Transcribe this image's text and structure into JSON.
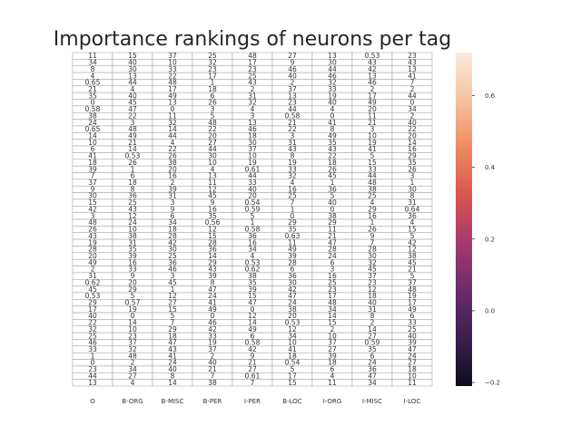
{
  "chart_data": {
    "type": "heatmap",
    "title": "Importance rankings of neurons per tag",
    "xlabel": "",
    "ylabel": "",
    "columns": [
      "O",
      "B-ORG",
      "B-MISC",
      "B-PER",
      "I-PER",
      "B-LOC",
      "I-ORG",
      "I-MISC",
      "I-LOC"
    ],
    "cell_labels": [
      [
        "11",
        "15",
        "37",
        "25",
        "48",
        "27",
        "13",
        "0.53",
        "23"
      ],
      [
        "34",
        "40",
        "10",
        "32",
        "17",
        "9",
        "30",
        "43",
        "43"
      ],
      [
        "8",
        "30",
        "33",
        "23",
        "23",
        "46",
        "44",
        "42",
        "13"
      ],
      [
        "4",
        "13",
        "22",
        "17",
        "25",
        "40",
        "46",
        "13",
        "41"
      ],
      [
        "0.65",
        "44",
        "48",
        "1",
        "43",
        "2",
        "32",
        "46",
        "7"
      ],
      [
        "21",
        "4",
        "17",
        "18",
        "2",
        "37",
        "33",
        "2",
        "2"
      ],
      [
        "35",
        "40",
        "49",
        "6",
        "31",
        "13",
        "19",
        "17",
        "44"
      ],
      [
        "0",
        "45",
        "13",
        "26",
        "32",
        "23",
        "40",
        "49",
        "0"
      ],
      [
        "0.58",
        "47",
        "0",
        "3",
        "4",
        "44",
        "4",
        "20",
        "34"
      ],
      [
        "38",
        "22",
        "11",
        "5",
        "3",
        "0.58",
        "0",
        "11",
        "2"
      ],
      [
        "24",
        "3",
        "32",
        "48",
        "13",
        "21",
        "41",
        "21",
        "40"
      ],
      [
        "0.65",
        "48",
        "14",
        "22",
        "46",
        "22",
        "8",
        "3",
        "22"
      ],
      [
        "14",
        "49",
        "44",
        "20",
        "18",
        "3",
        "49",
        "10",
        "20"
      ],
      [
        "10",
        "21",
        "4",
        "27",
        "30",
        "31",
        "35",
        "19",
        "14"
      ],
      [
        "6",
        "14",
        "22",
        "44",
        "37",
        "43",
        "43",
        "41",
        "16"
      ],
      [
        "41",
        "0.53",
        "26",
        "30",
        "10",
        "8",
        "22",
        "5",
        "29"
      ],
      [
        "18",
        "26",
        "38",
        "10",
        "19",
        "19",
        "18",
        "15",
        "35"
      ],
      [
        "39",
        "1",
        "20",
        "4",
        "0.61",
        "33",
        "26",
        "33",
        "26"
      ],
      [
        "7",
        "6",
        "16",
        "13",
        "44",
        "32",
        "45",
        "44",
        "3"
      ],
      [
        "37",
        "18",
        "2",
        "11",
        "33",
        "4",
        "1",
        "48",
        "1"
      ],
      [
        "9",
        "8",
        "39",
        "12",
        "40",
        "16",
        "36",
        "38",
        "30"
      ],
      [
        "30",
        "36",
        "31",
        "45",
        "20",
        "25",
        "5",
        "25",
        "8"
      ],
      [
        "15",
        "25",
        "3",
        "9",
        "0.54",
        "7",
        "40",
        "4",
        "31"
      ],
      [
        "42",
        "43",
        "9",
        "16",
        "0.59",
        "1",
        "0",
        "29",
        "0.64"
      ],
      [
        "3",
        "12",
        "6",
        "35",
        "5",
        "0",
        "38",
        "16",
        "36"
      ],
      [
        "48",
        "24",
        "34",
        "0.56",
        "1",
        "29",
        "29",
        "1",
        "4"
      ],
      [
        "26",
        "10",
        "18",
        "12",
        "0.58",
        "35",
        "11",
        "26",
        "15"
      ],
      [
        "43",
        "38",
        "28",
        "15",
        "36",
        "0.63",
        "21",
        "9",
        "5"
      ],
      [
        "19",
        "31",
        "42",
        "28",
        "16",
        "11",
        "47",
        "7",
        "42"
      ],
      [
        "28",
        "35",
        "30",
        "36",
        "34",
        "49",
        "28",
        "28",
        "12"
      ],
      [
        "20",
        "39",
        "25",
        "14",
        "4",
        "39",
        "24",
        "30",
        "38"
      ],
      [
        "49",
        "16",
        "36",
        "29",
        "0.53",
        "28",
        "6",
        "32",
        "45"
      ],
      [
        "2",
        "33",
        "46",
        "43",
        "0.62",
        "6",
        "3",
        "45",
        "21"
      ],
      [
        "31",
        "9",
        "3",
        "39",
        "38",
        "36",
        "16",
        "37",
        "5"
      ],
      [
        "0.62",
        "20",
        "45",
        "8",
        "35",
        "30",
        "25",
        "23",
        "37"
      ],
      [
        "45",
        "29",
        "1",
        "47",
        "39",
        "42",
        "23",
        "12",
        "48"
      ],
      [
        "0.53",
        "5",
        "12",
        "24",
        "15",
        "47",
        "17",
        "18",
        "19"
      ],
      [
        "29",
        "0.57",
        "27",
        "41",
        "47",
        "24",
        "48",
        "40",
        "17"
      ],
      [
        "17",
        "19",
        "15",
        "49",
        "0",
        "38",
        "34",
        "31",
        "49"
      ],
      [
        "40",
        "0",
        "5",
        "0",
        "12",
        "20",
        "14",
        "8",
        "6"
      ],
      [
        "22",
        "14",
        "7",
        "46",
        "14",
        "0.53",
        "15",
        "2",
        "33"
      ],
      [
        "32",
        "10",
        "29",
        "42",
        "49",
        "12",
        "2",
        "14",
        "25"
      ],
      [
        "25",
        "23",
        "18",
        "33",
        "6",
        "34",
        "10",
        "27",
        "40"
      ],
      [
        "46",
        "37",
        "47",
        "19",
        "0.58",
        "10",
        "37",
        "0.59",
        "39"
      ],
      [
        "33",
        "32",
        "43",
        "37",
        "42",
        "41",
        "27",
        "35",
        "47"
      ],
      [
        "1",
        "48",
        "41",
        "2",
        "9",
        "18",
        "39",
        "6",
        "24"
      ],
      [
        "0",
        "2",
        "24",
        "40",
        "21",
        "0.54",
        "18",
        "24",
        "27"
      ],
      [
        "23",
        "34",
        "40",
        "21",
        "27",
        "5",
        "6",
        "36",
        "18"
      ],
      [
        "44",
        "27",
        "8",
        "7",
        "0.61",
        "17",
        "4",
        "47",
        "10"
      ],
      [
        "13",
        "4",
        "14",
        "38",
        "7",
        "15",
        "11",
        "34",
        "11"
      ]
    ],
    "colorbar": {
      "ticks": [
        "0.6",
        "0.4",
        "0.2",
        "0.0",
        "−0.2"
      ],
      "range": [
        -0.21,
        0.72
      ],
      "colors": [
        "#0e0c1f",
        "#3b1f4e",
        "#6b2a6b",
        "#a63a6c",
        "#d9544f",
        "#ef8a62",
        "#f6c29f",
        "#faebdd"
      ]
    },
    "cell_text_color": "#333333",
    "cell_background": "#ffffff",
    "grid": true
  }
}
